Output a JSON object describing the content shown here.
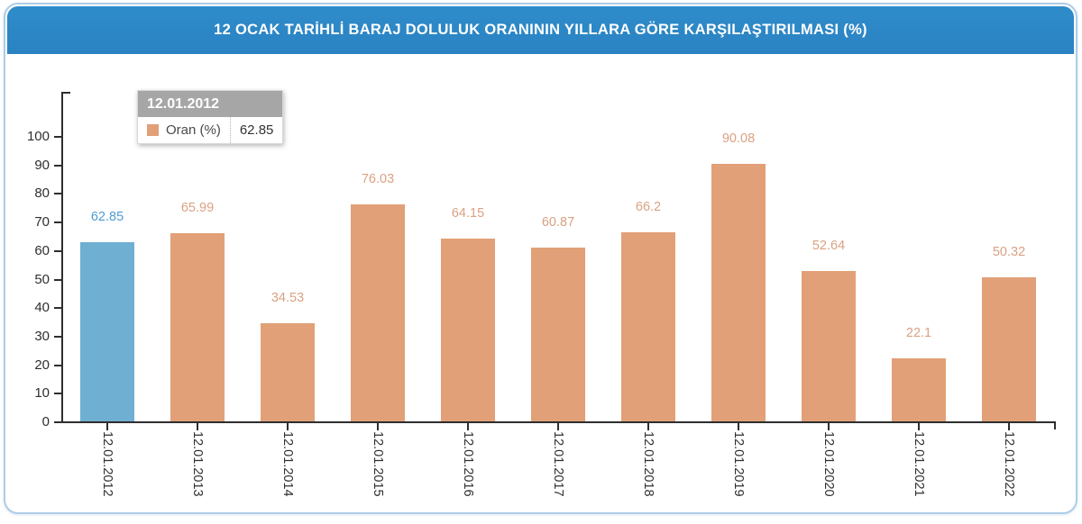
{
  "header": {
    "title": "12 OCAK TARİHLİ BARAJ DOLULUK ORANININ YILLARA GÖRE KARŞILAŞTIRILMASI (%)",
    "bg_color": "#2a82c2",
    "text_color": "#ffffff"
  },
  "tooltip": {
    "title": "12.01.2012",
    "series_label": "Oran (%)",
    "value": "62.85",
    "header_bg": "#a6a6a6",
    "swatch_color": "#e1a077"
  },
  "chart_data": {
    "type": "bar",
    "title": "12 OCAK TARİHLİ BARAJ DOLULUK ORANININ YILLARA GÖRE KARŞILAŞTIRILMASI (%)",
    "series_name": "Oran (%)",
    "categories": [
      "12.01.2012",
      "12.01.2013",
      "12.01.2014",
      "12.01.2015",
      "12.01.2016",
      "12.01.2017",
      "12.01.2018",
      "12.01.2019",
      "12.01.2020",
      "12.01.2021",
      "12.01.2022"
    ],
    "values": [
      62.85,
      65.99,
      34.53,
      76.03,
      64.15,
      60.87,
      66.2,
      90.08,
      52.64,
      22.1,
      50.32
    ],
    "xlabel": "",
    "ylabel": "",
    "ylim": [
      0,
      100
    ],
    "yticks": [
      0,
      10,
      20,
      30,
      40,
      50,
      60,
      70,
      80,
      90,
      100
    ],
    "grid": false,
    "legend_position": "tooltip-only",
    "highlight_index": 0,
    "bar_color": "#e1a077",
    "highlight_color": "#6fafd2",
    "value_label_color": "#dba183",
    "value_label_highlight_color": "#4e9cd2",
    "axis_color": "#2e2e2e"
  }
}
